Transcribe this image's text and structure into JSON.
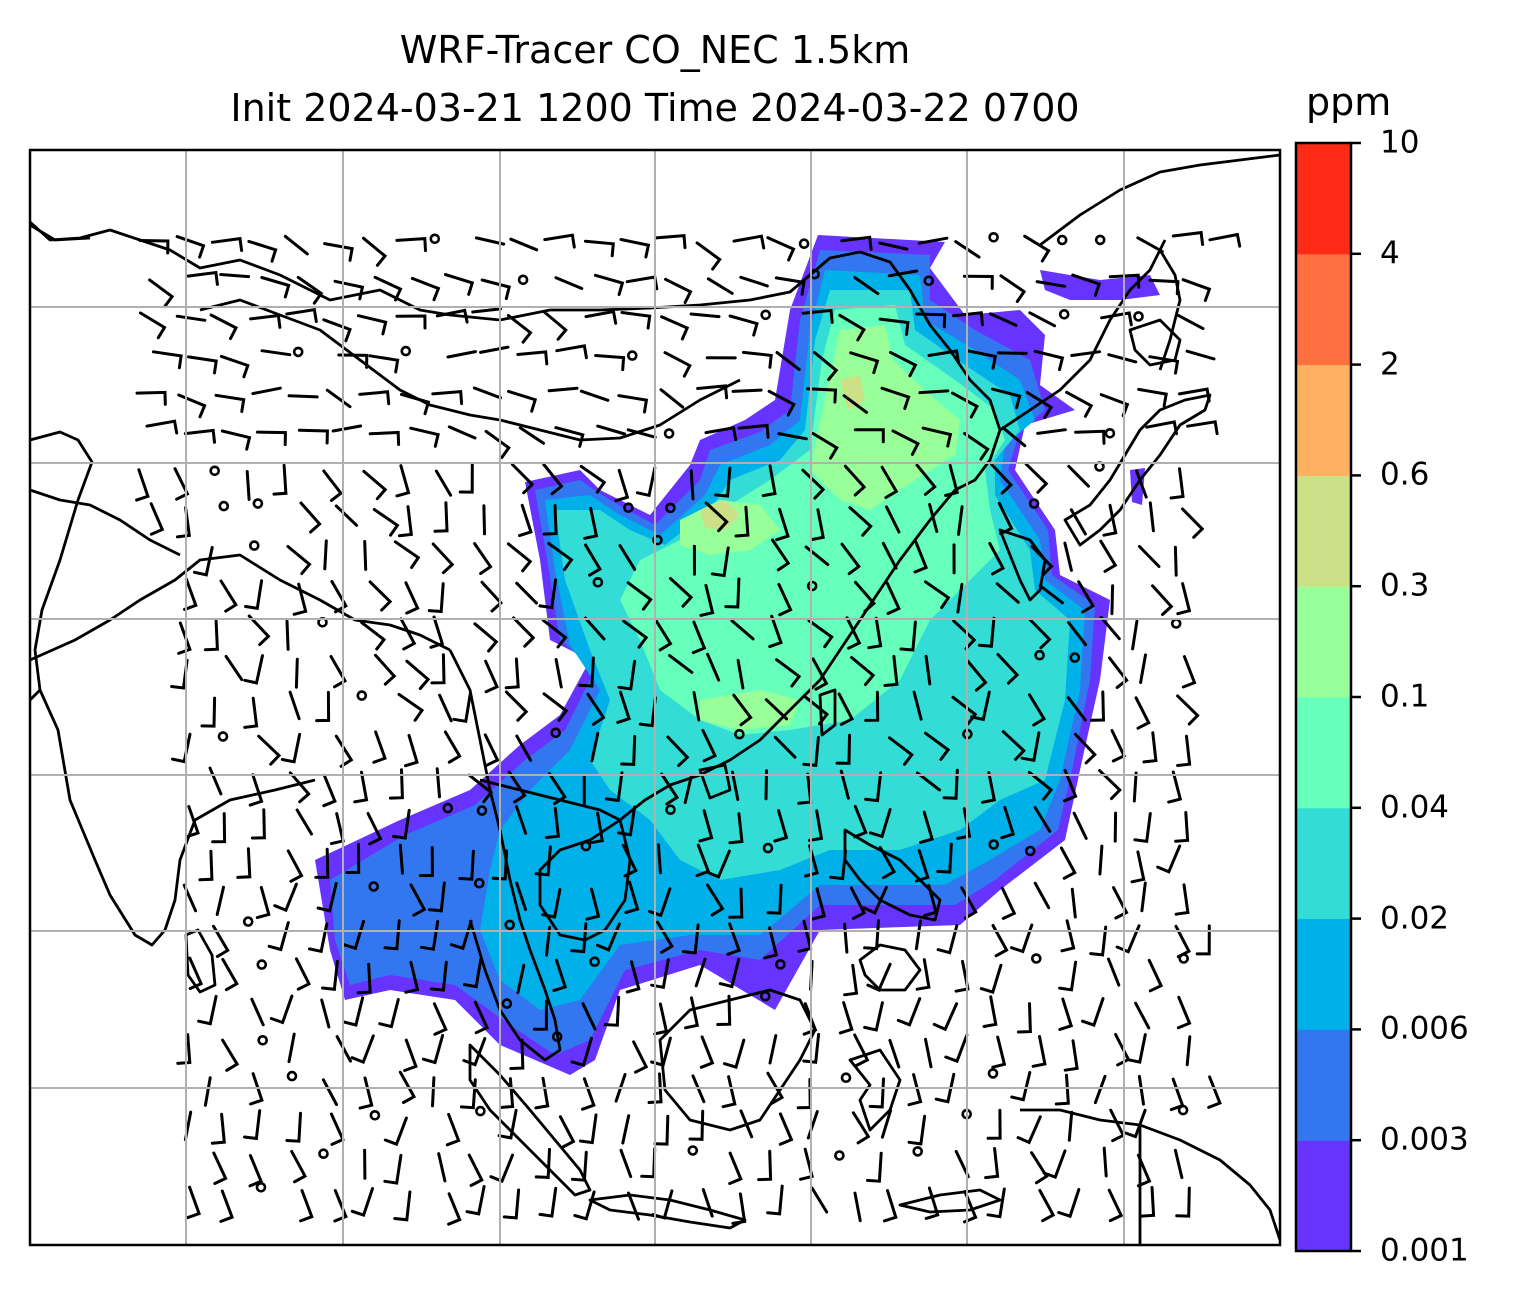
{
  "title_line1": "WRF-Tracer CO_NEC 1.5km",
  "title_line2": "Init 2024-03-21 1200 Time 2024-03-22 0700",
  "colorbar": {
    "unit": "ppm",
    "ticks": [
      "0.001",
      "0.003",
      "0.006",
      "0.02",
      "0.04",
      "0.1",
      "0.3",
      "0.6",
      "2",
      "4",
      "10"
    ],
    "colors": [
      "#6633ff",
      "#3377f0",
      "#00b0e8",
      "#33ddd5",
      "#66ffbb",
      "#99ff99",
      "#cce088",
      "#ffb060",
      "#ff7040",
      "#ff2a15"
    ]
  },
  "map": {
    "projection": "Lambert conformal, East / Southeast Asia",
    "gridlines": true,
    "overlay": "wind barbs and calm circles",
    "field": "CO tracer concentration at 1.5 km"
  }
}
